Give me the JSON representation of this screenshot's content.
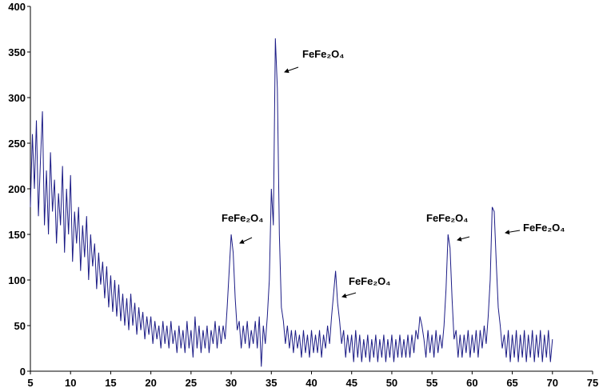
{
  "chart_data": {
    "type": "line",
    "color": "#1c1c86",
    "xlim": [
      5,
      75
    ],
    "xticks": [
      5,
      10,
      15,
      20,
      25,
      30,
      35,
      40,
      45,
      50,
      55,
      60,
      65,
      70,
      75
    ],
    "ylim": [
      0,
      400
    ],
    "yticks": [
      0,
      50,
      100,
      150,
      200,
      250,
      300,
      350,
      400
    ],
    "x": [
      5,
      5.25,
      5.5,
      5.75,
      6,
      6.25,
      6.5,
      6.75,
      7,
      7.25,
      7.5,
      7.75,
      8,
      8.25,
      8.5,
      8.75,
      9,
      9.25,
      9.5,
      9.75,
      10,
      10.25,
      10.5,
      10.75,
      11,
      11.25,
      11.5,
      11.75,
      12,
      12.25,
      12.5,
      12.75,
      13,
      13.25,
      13.5,
      13.75,
      14,
      14.25,
      14.5,
      14.75,
      15,
      15.25,
      15.5,
      15.75,
      16,
      16.25,
      16.5,
      16.75,
      17,
      17.25,
      17.5,
      17.75,
      18,
      18.25,
      18.5,
      18.75,
      19,
      19.25,
      19.5,
      19.75,
      20,
      20.25,
      20.5,
      20.75,
      21,
      21.25,
      21.5,
      21.75,
      22,
      22.25,
      22.5,
      22.75,
      23,
      23.25,
      23.5,
      23.75,
      24,
      24.25,
      24.5,
      24.75,
      25,
      25.25,
      25.5,
      25.75,
      26,
      26.25,
      26.5,
      26.75,
      27,
      27.25,
      27.5,
      27.75,
      28,
      28.25,
      28.5,
      28.75,
      29,
      29.25,
      29.5,
      29.75,
      30,
      30.25,
      30.5,
      30.75,
      31,
      31.25,
      31.5,
      31.75,
      32,
      32.25,
      32.5,
      32.75,
      33,
      33.25,
      33.5,
      33.75,
      34,
      34.25,
      34.5,
      34.75,
      35,
      35.25,
      35.5,
      35.75,
      36,
      36.25,
      36.5,
      36.75,
      37,
      37.25,
      37.5,
      37.75,
      38,
      38.25,
      38.5,
      38.75,
      39,
      39.25,
      39.5,
      39.75,
      40,
      40.25,
      40.5,
      40.75,
      41,
      41.25,
      41.5,
      41.75,
      42,
      42.25,
      42.5,
      42.75,
      43,
      43.25,
      43.5,
      43.75,
      44,
      44.25,
      44.5,
      44.75,
      45,
      45.25,
      45.5,
      45.75,
      46,
      46.25,
      46.5,
      46.75,
      47,
      47.25,
      47.5,
      47.75,
      48,
      48.25,
      48.5,
      48.75,
      49,
      49.25,
      49.5,
      49.75,
      50,
      50.25,
      50.5,
      50.75,
      51,
      51.25,
      51.5,
      51.75,
      52,
      52.25,
      52.5,
      52.75,
      53,
      53.25,
      53.5,
      53.75,
      54,
      54.25,
      54.5,
      54.75,
      55,
      55.25,
      55.5,
      55.75,
      56,
      56.25,
      56.5,
      56.75,
      57,
      57.25,
      57.5,
      57.75,
      58,
      58.25,
      58.5,
      58.75,
      59,
      59.25,
      59.5,
      59.75,
      60,
      60.25,
      60.5,
      60.75,
      61,
      61.25,
      61.5,
      61.75,
      62,
      62.25,
      62.5,
      62.75,
      63,
      63.25,
      63.5,
      63.75,
      64,
      64.25,
      64.5,
      64.75,
      65,
      65.25,
      65.5,
      65.75,
      66,
      66.25,
      66.5,
      66.75,
      67,
      67.25,
      67.5,
      67.75,
      68,
      68.25,
      68.5,
      68.75,
      69,
      69.25,
      69.5,
      69.75,
      70
    ],
    "values": [
      180,
      260,
      200,
      275,
      170,
      230,
      285,
      160,
      220,
      150,
      240,
      175,
      210,
      140,
      195,
      160,
      225,
      130,
      200,
      150,
      215,
      120,
      175,
      140,
      180,
      110,
      160,
      125,
      170,
      100,
      150,
      115,
      140,
      90,
      130,
      95,
      120,
      80,
      115,
      70,
      105,
      65,
      100,
      60,
      95,
      55,
      85,
      50,
      80,
      45,
      85,
      50,
      75,
      40,
      70,
      45,
      65,
      35,
      60,
      40,
      60,
      30,
      55,
      35,
      50,
      25,
      55,
      30,
      50,
      25,
      55,
      30,
      45,
      20,
      50,
      25,
      45,
      20,
      55,
      25,
      45,
      15,
      60,
      25,
      50,
      20,
      45,
      25,
      50,
      20,
      45,
      30,
      55,
      25,
      50,
      30,
      50,
      35,
      70,
      110,
      150,
      130,
      80,
      45,
      55,
      25,
      50,
      30,
      55,
      25,
      45,
      30,
      55,
      25,
      60,
      5,
      50,
      30,
      60,
      100,
      200,
      160,
      365,
      310,
      150,
      70,
      55,
      30,
      50,
      25,
      45,
      20,
      45,
      25,
      40,
      15,
      45,
      20,
      40,
      15,
      45,
      20,
      40,
      20,
      45,
      15,
      40,
      25,
      50,
      30,
      60,
      85,
      110,
      75,
      55,
      30,
      45,
      15,
      40,
      20,
      40,
      10,
      45,
      15,
      40,
      10,
      35,
      15,
      40,
      10,
      35,
      15,
      40,
      10,
      35,
      15,
      40,
      10,
      35,
      15,
      40,
      10,
      35,
      15,
      40,
      15,
      35,
      15,
      40,
      15,
      40,
      20,
      45,
      35,
      60,
      50,
      35,
      15,
      45,
      20,
      40,
      15,
      45,
      20,
      40,
      25,
      50,
      90,
      150,
      135,
      80,
      35,
      45,
      15,
      40,
      15,
      40,
      20,
      45,
      15,
      40,
      20,
      45,
      15,
      45,
      25,
      50,
      30,
      60,
      100,
      180,
      175,
      120,
      70,
      50,
      25,
      40,
      15,
      45,
      10,
      40,
      15,
      45,
      10,
      40,
      15,
      45,
      10,
      40,
      15,
      45,
      10,
      40,
      15,
      45,
      10,
      40,
      15,
      45,
      10,
      35
    ],
    "annotations": [
      {
        "text": "FeFe₂O₄"
      },
      {
        "text": "FeFe₂O₄"
      },
      {
        "text": "FeFe₂O₄"
      },
      {
        "text": "FeFe₂O₄"
      },
      {
        "text": "FeFe₂O₄"
      }
    ]
  }
}
